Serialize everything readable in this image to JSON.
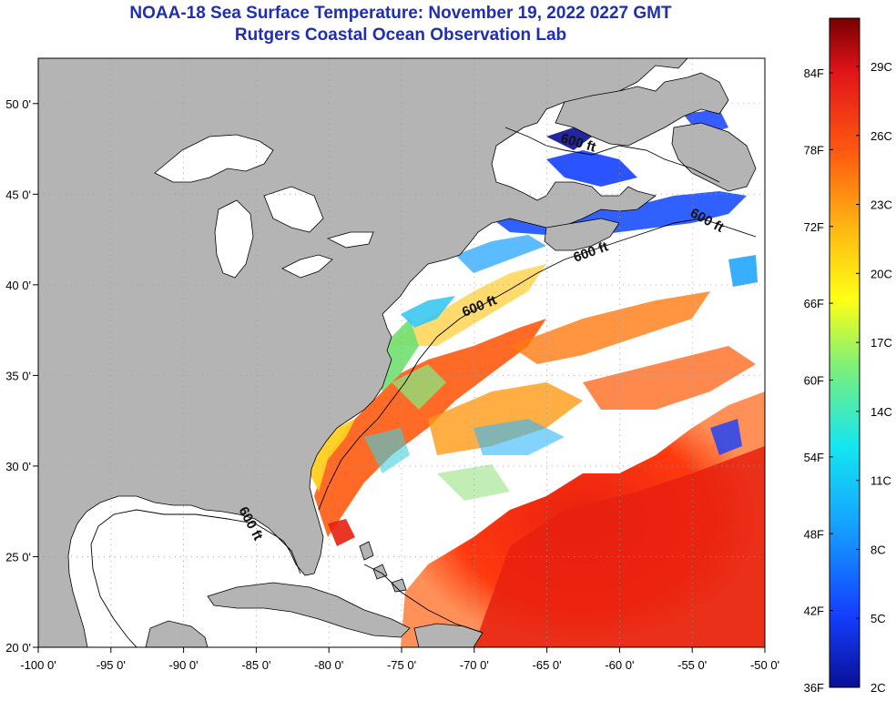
{
  "header": {
    "title_line1": "NOAA-18 Sea Surface Temperature:  November 19, 2022 0227 GMT",
    "title_line2": "Rutgers Coastal Ocean Observation Lab"
  },
  "map": {
    "lon_range": [
      -100,
      -50
    ],
    "lat_range": [
      20,
      52.5
    ],
    "longitude_labels": [
      "-100 0'",
      "-95 0'",
      "-90 0'",
      "-85 0'",
      "-80 0'",
      "-75 0'",
      "-70 0'",
      "-65 0'",
      "-60 0'",
      "-55 0'",
      "-50 0'"
    ],
    "latitude_labels": [
      "50 0'",
      "45 0'",
      "40 0'",
      "35 0'",
      "30 0'",
      "25 0'",
      "20 0'"
    ],
    "contour_label": "600 ft",
    "colors": {
      "land": "#b4b4b4",
      "cloud_or_nodata": "#ffffff",
      "gridline": "#9a9a9a"
    }
  },
  "color_scale": {
    "fahrenheit_labels": [
      "84F",
      "78F",
      "72F",
      "66F",
      "60F",
      "54F",
      "48F",
      "42F",
      "36F"
    ],
    "celsius_labels": [
      "29C",
      "26C",
      "23C",
      "20C",
      "17C",
      "14C",
      "11C",
      "8C",
      "5C",
      "2C"
    ],
    "stops": [
      "#0a0f96",
      "#1440ff",
      "#15a0ff",
      "#14e6f0",
      "#7df07a",
      "#ffff14",
      "#ffb414",
      "#ff5a10",
      "#e0141a",
      "#780000"
    ]
  }
}
